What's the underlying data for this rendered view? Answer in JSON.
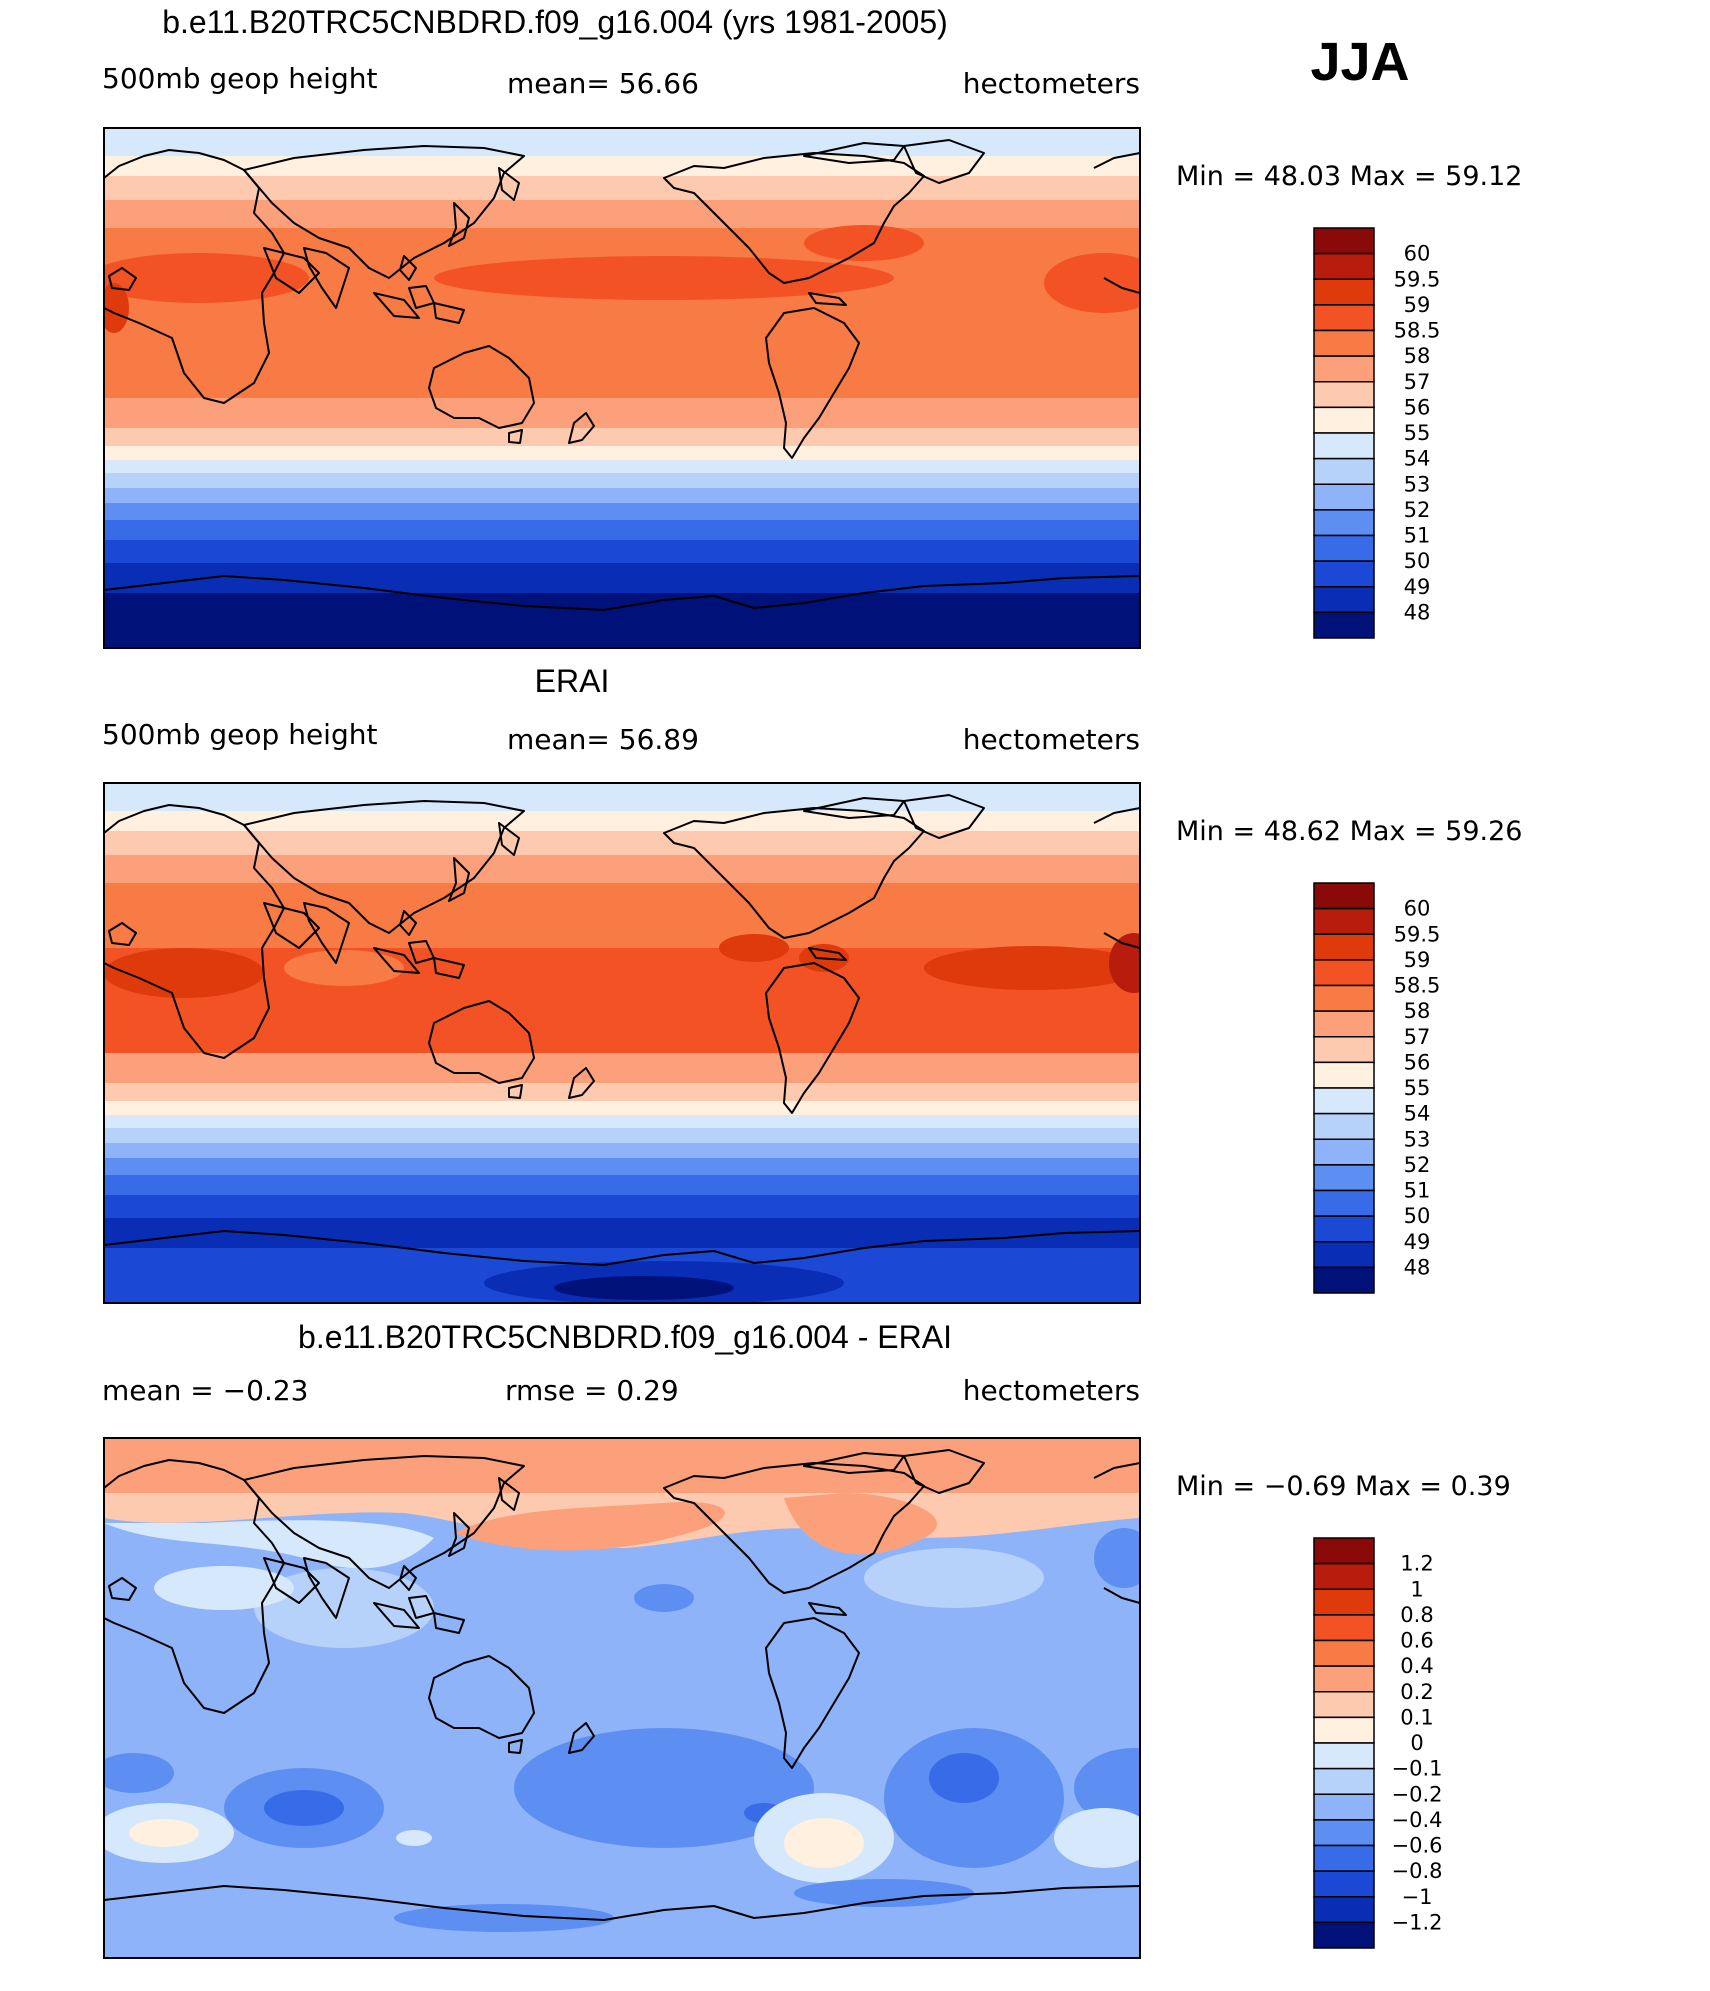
{
  "season": "JJA",
  "panels": [
    {
      "title": "b.e11.B20TRC5CNBDRD.f09_g16.004 (yrs 1981-2005)",
      "left_label": "500mb geop height",
      "center_label": "mean=   56.66",
      "right_label": "hectometers",
      "minmax": "Min =   48.03  Max =   59.12",
      "field": "model"
    },
    {
      "title": "ERAI",
      "left_label": "500mb geop height",
      "center_label": "mean=   56.89",
      "right_label": "hectometers",
      "minmax": "Min =   48.62  Max =   59.26",
      "field": "obs"
    },
    {
      "title": "b.e11.B20TRC5CNBDRD.f09_g16.004 - ERAI",
      "left_label": "mean =   −0.23",
      "center_label": "rmse =    0.29",
      "right_label": "hectometers",
      "minmax": "Min =   −0.69  Max =     0.39",
      "field": "diff"
    }
  ],
  "colorbars": [
    {
      "labels": [
        "60",
        "59.5",
        "59",
        "58.5",
        "58",
        "57",
        "56",
        "55",
        "54",
        "53",
        "52",
        "51",
        "50",
        "49",
        "48"
      ],
      "colors": [
        "#8a0a0a",
        "#b71c0c",
        "#de3a0c",
        "#f35224",
        "#f87a45",
        "#fba07a",
        "#fdcab0",
        "#fff0e0",
        "#d6e8fb",
        "#b6d2fa",
        "#8eb3f8",
        "#5d8ef2",
        "#376be8",
        "#1c48d6",
        "#0a2db6",
        "#00127a"
      ]
    },
    {
      "labels": [
        "60",
        "59.5",
        "59",
        "58.5",
        "58",
        "57",
        "56",
        "55",
        "54",
        "53",
        "52",
        "51",
        "50",
        "49",
        "48"
      ],
      "colors": [
        "#8a0a0a",
        "#b71c0c",
        "#de3a0c",
        "#f35224",
        "#f87a45",
        "#fba07a",
        "#fdcab0",
        "#fff0e0",
        "#d6e8fb",
        "#b6d2fa",
        "#8eb3f8",
        "#5d8ef2",
        "#376be8",
        "#1c48d6",
        "#0a2db6",
        "#00127a"
      ]
    },
    {
      "labels": [
        "1.2",
        "1",
        "0.8",
        "0.6",
        "0.4",
        "0.2",
        "0.1",
        "0",
        "−0.1",
        "−0.2",
        "−0.4",
        "−0.6",
        "−0.8",
        "−1",
        "−1.2"
      ],
      "colors": [
        "#8a0a0a",
        "#b71c0c",
        "#de3a0c",
        "#f35224",
        "#f87a45",
        "#fba07a",
        "#fdcab0",
        "#fff0e0",
        "#d6e8fb",
        "#b6d2fa",
        "#8eb3f8",
        "#5d8ef2",
        "#376be8",
        "#1c48d6",
        "#0a2db6",
        "#00127a"
      ]
    }
  ]
}
